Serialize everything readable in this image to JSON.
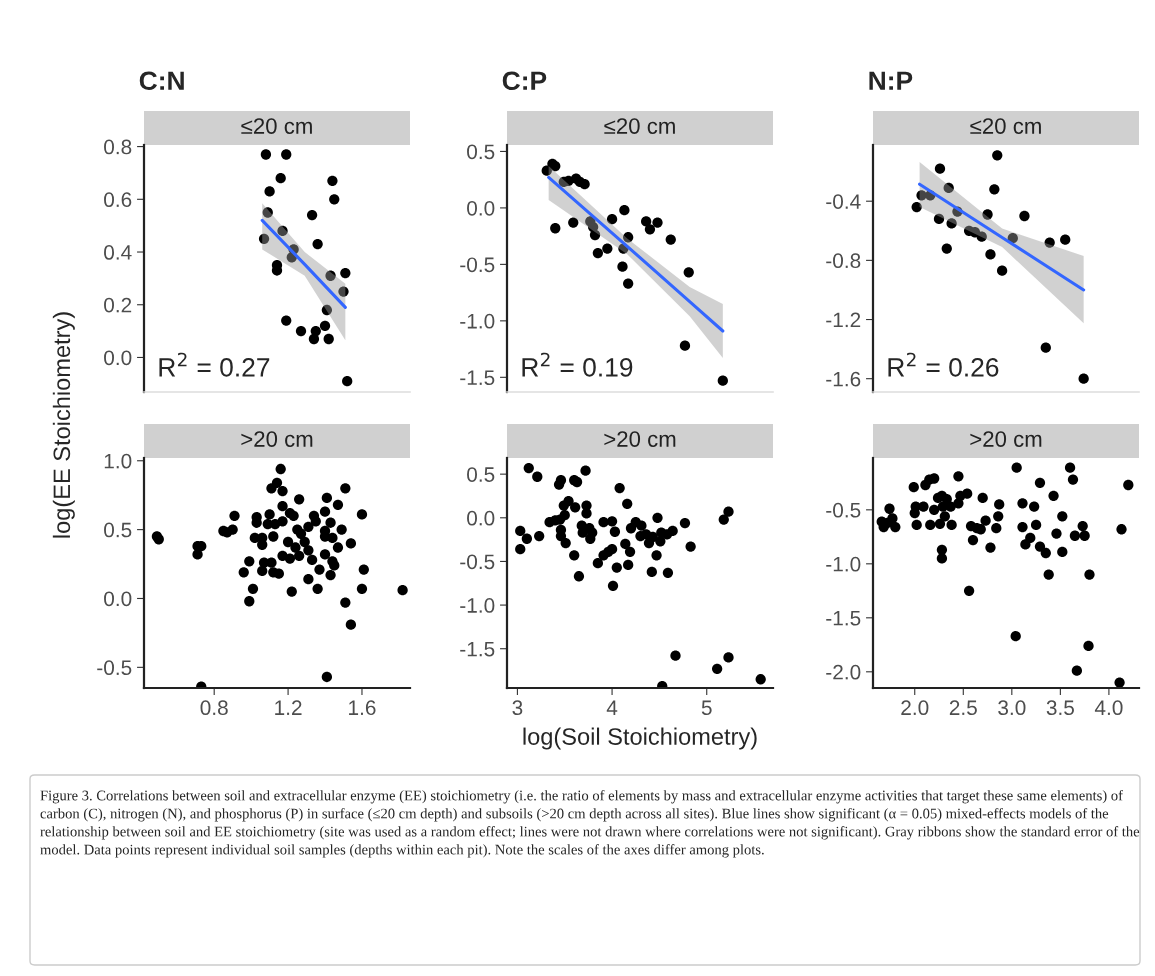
{
  "chart_data": [
    {
      "type": "scatter",
      "title": "C:N",
      "subtitle": "≤20 cm",
      "xlim": [
        0.42,
        1.86
      ],
      "ylim": [
        -0.131,
        0.806
      ],
      "yticks": [
        {
          "value": 0,
          "label": "0.0"
        },
        0.2,
        0.4,
        0.6,
        0.8
      ],
      "tick_labels": "y",
      "annotations": [
        "R$^{2}$ = 0.27"
      ],
      "series": [
        {
          "color": "#000000",
          "marker": "circle",
          "x": [
            1.08,
            1.19,
            1.16,
            1.1,
            1.09,
            1.07,
            1.17,
            1.23,
            1.22,
            1.14,
            1.14,
            1.33,
            1.36,
            1.44,
            1.45,
            1.43,
            1.51,
            1.5,
            1.41,
            1.19,
            1.27,
            1.35,
            1.34,
            1.4,
            1.42,
            1.52
          ],
          "values": [
            0.77,
            0.77,
            0.68,
            0.63,
            0.55,
            0.45,
            0.48,
            0.41,
            0.38,
            0.35,
            0.33,
            0.54,
            0.43,
            0.67,
            0.6,
            0.31,
            0.32,
            0.25,
            0.18,
            0.14,
            0.1,
            0.1,
            0.07,
            0.12,
            0.07,
            -0.09
          ]
        },
        {
          "type": "line",
          "color": "#3366ff",
          "x": [
            1.06,
            1.29,
            1.51
          ],
          "values": [
            0.52,
            0.353,
            0.19
          ],
          "lower": [
            0.41,
            0.31,
            0.065
          ],
          "upper": [
            0.585,
            0.4,
            0.28
          ]
        }
      ]
    },
    {
      "type": "scatter",
      "title": "C:P",
      "subtitle": "≤20 cm",
      "xlim": [
        2.89,
        5.7
      ],
      "ylim": [
        -1.63,
        0.557
      ],
      "yticks": [
        -1.5,
        {
          "value": -1,
          "label": "-1.0"
        },
        -0.5,
        {
          "value": 0,
          "label": "0.0"
        },
        0.5
      ],
      "tick_labels": "y",
      "annotations": [
        "R$^{2}$ = 0.19"
      ],
      "series": [
        {
          "color": "#000000",
          "marker": "circle",
          "x": [
            3.31,
            3.37,
            3.4,
            3.49,
            3.54,
            3.62,
            3.66,
            3.71,
            3.4,
            3.59,
            3.77,
            3.8,
            3.82,
            3.85,
            3.95,
            4.0,
            4.13,
            4.17,
            4.12,
            4.11,
            4.17,
            4.36,
            4.4,
            4.48,
            4.62,
            4.81,
            4.77,
            5.17
          ],
          "values": [
            0.33,
            0.39,
            0.37,
            0.23,
            0.24,
            0.26,
            0.23,
            0.21,
            -0.18,
            -0.13,
            -0.12,
            -0.17,
            -0.24,
            -0.4,
            -0.36,
            -0.1,
            -0.02,
            -0.26,
            -0.36,
            -0.52,
            -0.67,
            -0.12,
            -0.19,
            -0.13,
            -0.28,
            -0.57,
            -1.22,
            -1.53
          ]
        },
        {
          "type": "line",
          "color": "#3366ff",
          "x": [
            3.33,
            4.16,
            4.82,
            5.17
          ],
          "values": [
            0.27,
            -0.34,
            -0.83,
            -1.09
          ],
          "lower": [
            0.07,
            -0.41,
            -0.96,
            -1.33
          ],
          "upper": [
            0.37,
            -0.27,
            -0.7,
            -0.85
          ]
        }
      ]
    },
    {
      "type": "scatter",
      "title": "N:P",
      "subtitle": "≤20 cm",
      "xlim": [
        1.57,
        4.31
      ],
      "ylim": [
        -1.69,
        -0.02
      ],
      "yticks": [
        -1.6,
        -1.2,
        -0.8,
        -0.4
      ],
      "tick_labels": "y",
      "annotations": [
        "R$^{2}$ = 0.26"
      ],
      "series": [
        {
          "color": "#000000",
          "marker": "circle",
          "x": [
            2.02,
            2.07,
            2.16,
            2.26,
            2.35,
            2.25,
            2.38,
            2.44,
            2.33,
            2.56,
            2.62,
            2.69,
            2.75,
            2.82,
            2.85,
            2.78,
            2.9,
            3.01,
            3.13,
            3.39,
            3.35,
            3.55,
            3.74
          ],
          "values": [
            -0.44,
            -0.36,
            -0.36,
            -0.18,
            -0.31,
            -0.52,
            -0.55,
            -0.47,
            -0.72,
            -0.6,
            -0.61,
            -0.64,
            -0.49,
            -0.32,
            -0.09,
            -0.76,
            -0.87,
            -0.65,
            -0.5,
            -0.68,
            -1.39,
            -0.66,
            -1.6
          ]
        },
        {
          "type": "line",
          "color": "#3366ff",
          "x": [
            2.05,
            2.9,
            3.74
          ],
          "values": [
            -0.285,
            -0.645,
            -1.0
          ],
          "lower": [
            -0.44,
            -0.71,
            -1.225
          ],
          "upper": [
            -0.135,
            -0.585,
            -0.77
          ]
        }
      ]
    },
    {
      "type": "scatter",
      "subtitle": ">20 cm",
      "ylabel": "log(EE Stoichiometry)",
      "xlim": [
        0.42,
        1.86
      ],
      "ylim": [
        -0.65,
        1.02
      ],
      "xticks": [
        0.8,
        1.2,
        1.6
      ],
      "yticks": [
        -0.5,
        {
          "value": 0,
          "label": "0.0"
        },
        0.5,
        {
          "value": 1,
          "label": "1.0"
        }
      ],
      "series": [
        {
          "color": "#000000",
          "marker": "circle",
          "x": [
            0.49,
            0.5,
            0.71,
            0.73,
            0.71,
            0.85,
            0.87,
            0.9,
            0.91,
            0.99,
            1.01,
            0.96,
            0.99,
            1.03,
            1.03,
            1.1,
            1.09,
            1.02,
            1.06,
            1.06,
            1.06,
            1.07,
            1.11,
            1.12,
            1.15,
            1.11,
            1.14,
            1.17,
            1.16,
            1.13,
            1.12,
            1.17,
            1.17,
            1.21,
            1.23,
            1.2,
            1.17,
            1.21,
            1.22,
            1.26,
            1.25,
            1.27,
            1.31,
            1.29,
            1.24,
            1.26,
            1.31,
            1.33,
            1.31,
            1.36,
            1.34,
            1.4,
            1.41,
            1.35,
            1.4,
            1.43,
            1.4,
            1.44,
            1.4,
            1.44,
            1.37,
            1.45,
            1.43,
            1.49,
            1.47,
            1.47,
            1.51,
            1.54,
            1.51,
            1.54,
            1.6,
            1.6,
            1.61,
            1.82,
            1.41,
            0.73
          ],
          "values": [
            0.45,
            0.43,
            0.38,
            0.38,
            0.32,
            0.49,
            0.48,
            0.5,
            0.6,
            -0.02,
            0.07,
            0.19,
            0.27,
            0.59,
            0.55,
            0.61,
            0.54,
            0.44,
            0.44,
            0.39,
            0.2,
            0.26,
            0.26,
            0.19,
            0.18,
            0.8,
            0.84,
            0.78,
            0.94,
            0.54,
            0.45,
            0.56,
            0.67,
            0.62,
            0.6,
            0.41,
            0.31,
            0.29,
            0.05,
            0.72,
            0.5,
            0.47,
            0.52,
            0.41,
            0.37,
            0.31,
            0.35,
            0.28,
            0.14,
            0.07,
            0.6,
            0.63,
            0.73,
            0.56,
            0.49,
            0.55,
            0.45,
            0.44,
            0.32,
            0.27,
            0.21,
            0.24,
            0.17,
            0.5,
            0.37,
            0.68,
            0.8,
            0.4,
            -0.03,
            -0.19,
            0.61,
            0.07,
            0.21,
            0.06,
            -0.57,
            -0.64
          ]
        }
      ]
    },
    {
      "type": "scatter",
      "subtitle": ">20 cm",
      "xlabel": "log(Soil Stoichiometry)",
      "xlim": [
        2.89,
        5.7
      ],
      "ylim": [
        -1.95,
        0.685
      ],
      "xticks": [
        3,
        4,
        5
      ],
      "yticks": [
        -1.5,
        {
          "value": -1,
          "label": "-1.0"
        },
        -0.5,
        {
          "value": 0,
          "label": "0.0"
        },
        0.5
      ],
      "annotations": [
        "Figure 3. Correlations between soil and extracellular enzyme (EE) stoichiometry (i.e. the ratio of elements by mass and extracellular enzyme activities that target these same elements) of carbon (C), nitrogen (N), and phosphorus (P) in surface (≤20 cm depth) and subsoils (>20 cm depth across all sites). Blue lines show significant (α = 0.05) mixed-effects models of the relationship between soil and EE stoichiometry (site was used as a random effect; lines were not drawn where correlations were not significant). Gray ribbons show the standard error of the model. Data points represent individual soil samples (depths within each pit). Note the scales of the axes differ among plots."
      ],
      "series": [
        {
          "color": "#000000",
          "marker": "circle",
          "x": [
            3.12,
            3.21,
            3.03,
            3.03,
            3.1,
            3.23,
            3.34,
            3.44,
            3.46,
            3.4,
            3.45,
            3.49,
            3.54,
            3.5,
            3.6,
            3.63,
            3.72,
            3.61,
            3.73,
            3.73,
            3.46,
            3.51,
            3.46,
            3.6,
            3.65,
            3.68,
            3.76,
            3.69,
            3.79,
            3.77,
            3.85,
            3.91,
            4.0,
            4.03,
            3.91,
            3.96,
            4.0,
            4.08,
            4.16,
            4.05,
            4.01,
            4.14,
            4.19,
            4.17,
            4.2,
            4.25,
            4.31,
            4.36,
            4.3,
            4.42,
            4.47,
            4.48,
            4.39,
            4.43,
            4.52,
            4.51,
            4.58,
            4.64,
            4.59,
            4.77,
            4.83,
            4.67,
            5.11,
            5.23,
            5.57,
            4.53,
            5.18,
            5.23
          ],
          "values": [
            0.57,
            0.47,
            -0.15,
            -0.36,
            -0.24,
            -0.21,
            -0.05,
            0.38,
            0.43,
            -0.03,
            -0.02,
            0.14,
            0.19,
            0.03,
            0.43,
            0.41,
            0.54,
            0.12,
            0.14,
            0.05,
            -0.21,
            -0.29,
            -0.14,
            -0.43,
            -0.67,
            -0.09,
            -0.12,
            -0.17,
            -0.17,
            -0.24,
            -0.52,
            -0.05,
            -0.04,
            -0.16,
            -0.43,
            -0.39,
            -0.36,
            0.34,
            0.16,
            -0.57,
            -0.78,
            -0.3,
            -0.39,
            -0.54,
            -0.12,
            -0.05,
            -0.09,
            -0.19,
            -0.21,
            -0.62,
            -0.43,
            0.0,
            -0.29,
            -0.22,
            -0.17,
            -0.27,
            -0.19,
            -0.15,
            -0.63,
            -0.06,
            -0.33,
            -1.58,
            -1.73,
            -1.6,
            -1.85,
            -1.93,
            -0.02,
            0.07
          ]
        }
      ]
    },
    {
      "type": "scatter",
      "subtitle": ">20 cm",
      "xlim": [
        1.57,
        4.31
      ],
      "ylim": [
        -2.15,
        -0.02
      ],
      "xticks": [
        {
          "value": 2,
          "label": "2.0"
        },
        2.5,
        {
          "value": 3,
          "label": "3.0"
        },
        3.5,
        {
          "value": 4,
          "label": "4.0"
        }
      ],
      "yticks": [
        {
          "value": -2,
          "label": "-2.0"
        },
        -1.5,
        {
          "value": -1,
          "label": "-1.0"
        },
        -0.5
      ],
      "series": [
        {
          "color": "#000000",
          "marker": "circle",
          "x": [
            1.74,
            1.66,
            1.72,
            1.77,
            1.8,
            1.68,
            1.99,
            2.11,
            2.15,
            2.2,
            2.01,
            2.0,
            2.09,
            2.2,
            2.02,
            2.16,
            2.26,
            2.24,
            2.28,
            2.33,
            2.29,
            2.37,
            2.31,
            2.38,
            2.45,
            2.47,
            2.54,
            2.45,
            2.28,
            2.28,
            2.7,
            2.58,
            2.64,
            2.68,
            2.6,
            2.73,
            2.78,
            2.84,
            2.87,
            2.86,
            2.56,
            3.05,
            3.11,
            3.23,
            3.29,
            3.43,
            3.11,
            3.25,
            3.19,
            3.29,
            3.14,
            3.52,
            3.46,
            3.38,
            3.35,
            3.52,
            3.04,
            3.6,
            3.63,
            3.65,
            3.75,
            3.73,
            3.8,
            3.79,
            3.67,
            4.13,
            4.2,
            4.11
          ],
          "values": [
            -0.49,
            -0.61,
            -0.62,
            -0.58,
            -0.66,
            -0.66,
            -0.29,
            -0.27,
            -0.22,
            -0.21,
            -0.47,
            -0.53,
            -0.47,
            -0.5,
            -0.64,
            -0.64,
            -0.63,
            -0.39,
            -0.37,
            -0.4,
            -0.47,
            -0.47,
            -0.56,
            -0.64,
            -0.19,
            -0.37,
            -0.35,
            -0.44,
            -0.87,
            -0.95,
            -0.39,
            -0.65,
            -0.67,
            -0.68,
            -0.78,
            -0.6,
            -0.85,
            -0.67,
            -0.45,
            -0.56,
            -1.25,
            -0.11,
            -0.44,
            -0.47,
            -0.25,
            -0.37,
            -0.66,
            -0.64,
            -0.76,
            -0.84,
            -0.82,
            -0.56,
            -0.72,
            -1.1,
            -0.9,
            -0.89,
            -1.67,
            -0.11,
            -0.22,
            -0.74,
            -0.74,
            -0.65,
            -1.1,
            -1.76,
            -1.99,
            -0.68,
            -0.27,
            -2.1
          ]
        }
      ]
    }
  ]
}
